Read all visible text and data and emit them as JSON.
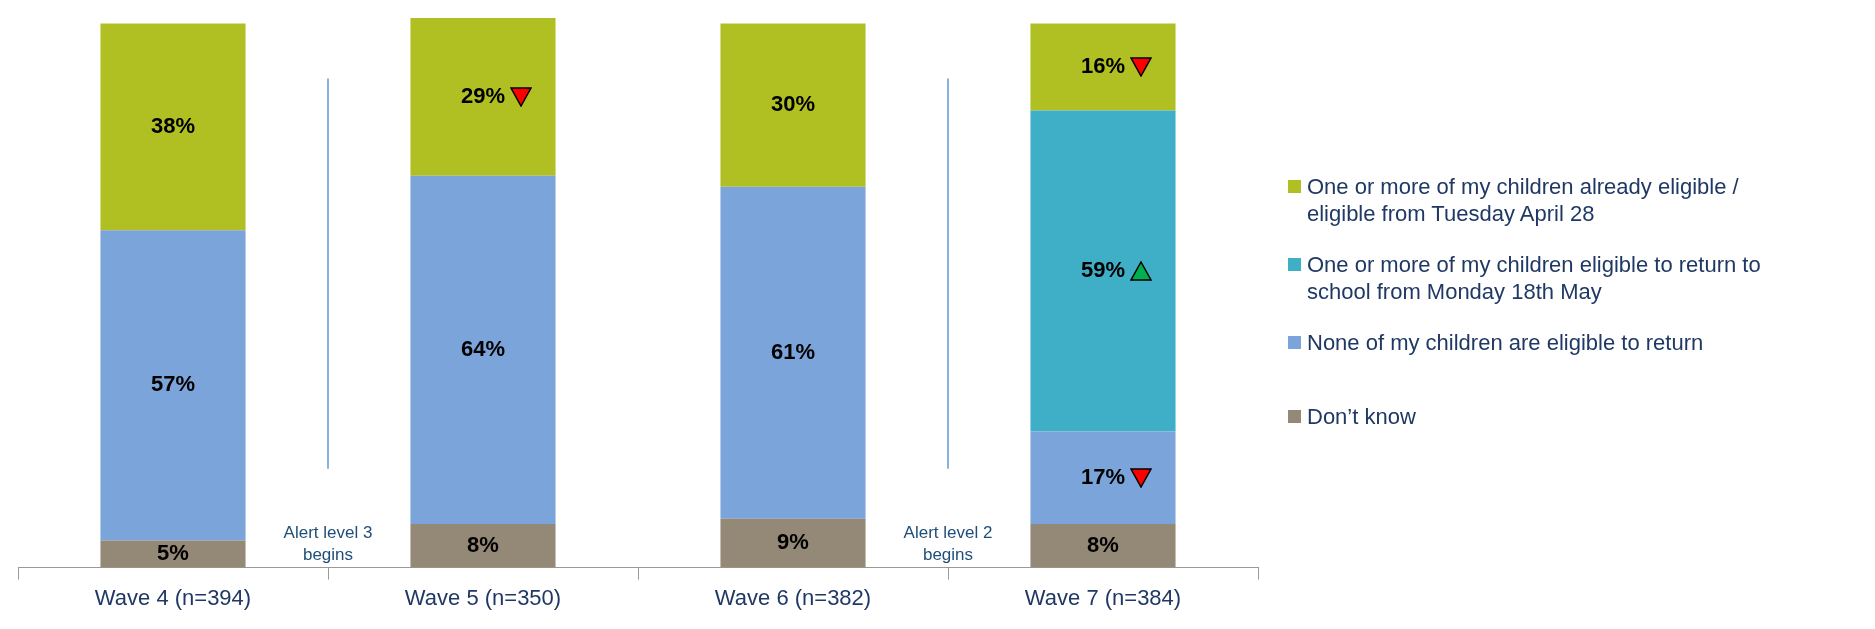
{
  "chart_data": {
    "type": "bar",
    "stacked": true,
    "categories": [
      "Wave 4 (n=394)",
      "Wave 5 (n=350)",
      "Wave 6 (n=382)",
      "Wave 7 (n=384)"
    ],
    "series": [
      {
        "name": "Don’t know",
        "color": "#948877",
        "values": [
          5,
          8,
          9,
          8
        ],
        "value_labels": [
          "5%",
          "8%",
          "9%",
          "8%"
        ]
      },
      {
        "name": "None of my children are eligible to return",
        "color": "#7ba4da",
        "values": [
          57,
          64,
          61,
          17
        ],
        "value_labels": [
          "57%",
          "64%",
          "61%",
          "17%"
        ]
      },
      {
        "name": "One or more of my children eligible to return to school from Monday 18th May",
        "color": "#3fafc7",
        "values": [
          null,
          null,
          null,
          59
        ],
        "value_labels": [
          null,
          null,
          null,
          "59%"
        ]
      },
      {
        "name": "One or more of my children already eligible / eligible from Tuesday April 28",
        "color": "#b0bf22",
        "values": [
          38,
          29,
          30,
          16
        ],
        "value_labels": [
          "38%",
          "29%",
          "30%",
          "16%"
        ]
      }
    ],
    "legend": "right",
    "annotations": [
      "Alert level 3 begins",
      "Alert level 2 begins"
    ]
  }
}
